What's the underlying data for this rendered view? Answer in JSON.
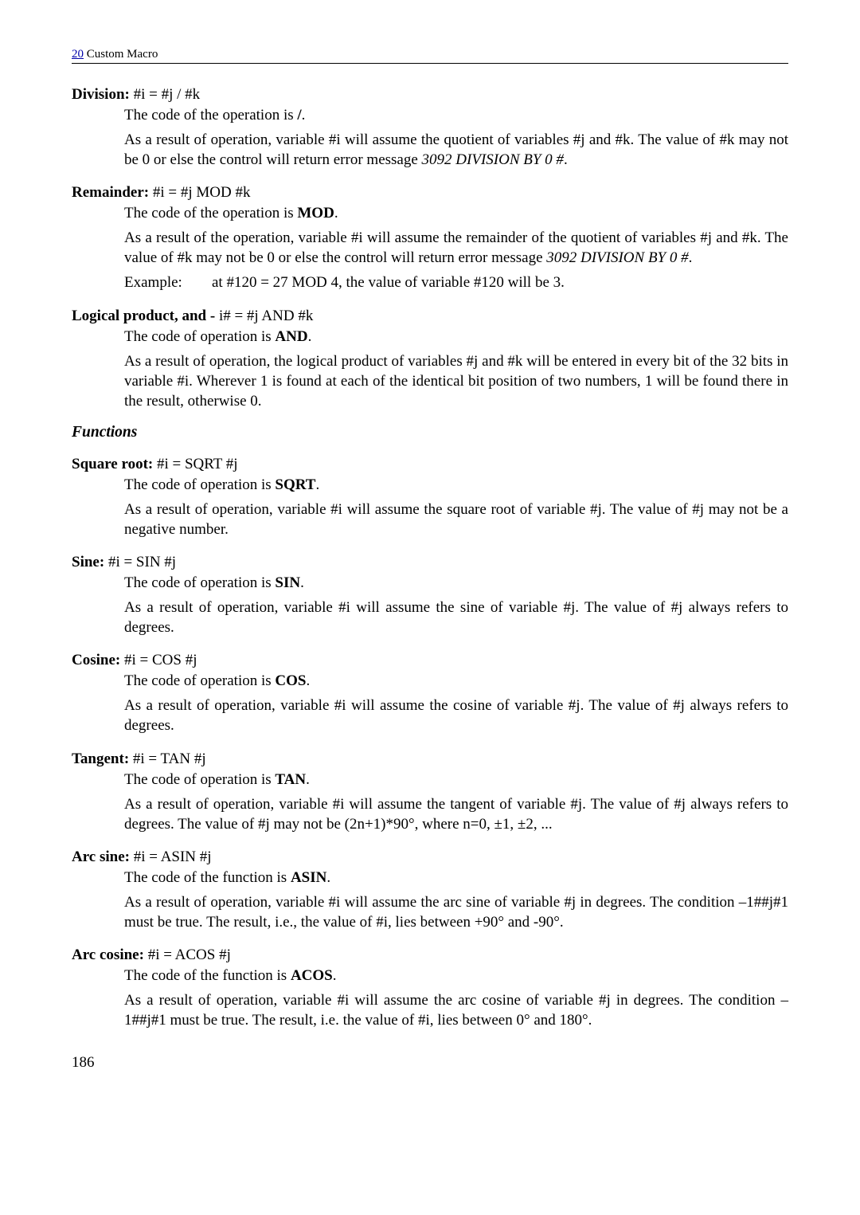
{
  "header": {
    "link_text": "20",
    "rest": " Custom Macro"
  },
  "sections": [
    {
      "title_bold": "Division:",
      "title_rest": " #i = #j / #k",
      "paras": [
        {
          "runs": [
            {
              "t": "The code of the operation is "
            },
            {
              "t": "/",
              "bold": true
            },
            {
              "t": "."
            }
          ]
        },
        {
          "runs": [
            {
              "t": "As a result of operation, variable #i will assume the quotient of variables #j and #k. The value of #k may not be 0 or else the control will return error message "
            },
            {
              "t": "3092 DIVISION BY 0 #",
              "italic": true
            },
            {
              "t": "."
            }
          ]
        }
      ]
    },
    {
      "title_bold": "Remainder:",
      "title_rest": " #i = #j MOD #k",
      "paras": [
        {
          "runs": [
            {
              "t": "The code of the operation is "
            },
            {
              "t": "MOD",
              "bold": true
            },
            {
              "t": "."
            }
          ]
        },
        {
          "runs": [
            {
              "t": "As a result of the operation, variable #i will assume the remainder of the quotient of variables #j and #k. The value of #k may not be 0 or else the control will return error message "
            },
            {
              "t": "3092 DIVISION BY 0 #",
              "italic": true
            },
            {
              "t": "."
            }
          ]
        },
        {
          "example": true,
          "label": "Example:",
          "rest": "at #120 = 27 MOD 4, the value of variable #120 will be 3."
        }
      ]
    },
    {
      "title_bold": "Logical product, and -",
      "title_rest": " i# = #j AND #k",
      "paras": [
        {
          "runs": [
            {
              "t": "The code of operation is "
            },
            {
              "t": "AND",
              "bold": true
            },
            {
              "t": "."
            }
          ]
        },
        {
          "runs": [
            {
              "t": "As a result of operation, the logical product of variables #j and #k will be entered in every bit of the 32 bits in variable #i. Wherever 1 is found at each of the identical bit position of two numbers, 1 will be found there in the result, otherwise 0."
            }
          ]
        }
      ]
    }
  ],
  "functions_heading": "Functions",
  "func_sections": [
    {
      "title_bold": "Square root:",
      "title_rest": " #i = SQRT #j",
      "paras": [
        {
          "runs": [
            {
              "t": "The code of operation is "
            },
            {
              "t": "SQRT",
              "bold": true
            },
            {
              "t": "."
            }
          ]
        },
        {
          "runs": [
            {
              "t": "As a result of operation, variable #i will assume the square root of variable #j. The value of #j may not be a negative number."
            }
          ]
        }
      ]
    },
    {
      "title_bold": "Sine:",
      "title_rest": " #i = SIN #j",
      "paras": [
        {
          "runs": [
            {
              "t": "The code of operation is "
            },
            {
              "t": "SIN",
              "bold": true
            },
            {
              "t": "."
            }
          ]
        },
        {
          "runs": [
            {
              "t": "As a result of operation, variable #i will assume the sine of variable #j. The value of #j always refers to degrees."
            }
          ]
        }
      ]
    },
    {
      "title_bold": "Cosine:",
      "title_rest": " #i = COS #j",
      "paras": [
        {
          "runs": [
            {
              "t": "The code of operation is "
            },
            {
              "t": "COS",
              "bold": true
            },
            {
              "t": "."
            }
          ]
        },
        {
          "runs": [
            {
              "t": "As a result of operation, variable #i will assume the cosine of variable #j. The value of #j always refers to degrees."
            }
          ]
        }
      ]
    },
    {
      "title_bold": "Tangent:",
      "title_rest": " #i = TAN #j",
      "paras": [
        {
          "runs": [
            {
              "t": "The code of operation is "
            },
            {
              "t": "TAN",
              "bold": true
            },
            {
              "t": "."
            }
          ]
        },
        {
          "runs": [
            {
              "t": "As a result of operation, variable #i will assume the tangent of variable #j. The value of #j always refers to degrees. The value of #j may not be (2n+1)*90°, where n=0, ±1, ±2, ..."
            }
          ]
        }
      ]
    },
    {
      "title_bold": "Arc sine:",
      "title_rest": " #i = ASIN #j",
      "paras": [
        {
          "runs": [
            {
              "t": "The code of the function is "
            },
            {
              "t": "ASIN",
              "bold": true
            },
            {
              "t": "."
            }
          ]
        },
        {
          "runs": [
            {
              "t": "As a result of operation, variable #i will assume the arc sine of variable #j in degrees. The condition  –1##j#1 must be true. The result, i.e., the value of #i, lies between +90° and -90°."
            }
          ]
        }
      ]
    },
    {
      "title_bold": "Arc cosine:",
      "title_rest": " #i = ACOS #j",
      "paras": [
        {
          "runs": [
            {
              "t": "The code of the function is "
            },
            {
              "t": "ACOS",
              "bold": true
            },
            {
              "t": "."
            }
          ]
        },
        {
          "runs": [
            {
              "t": "As a result of operation, variable #i will assume the arc cosine of variable #j in degrees. The condition –1##j#1 must be true. The result, i.e. the value of #i, lies between 0° and 180°."
            }
          ]
        }
      ]
    }
  ],
  "page_number": "186"
}
